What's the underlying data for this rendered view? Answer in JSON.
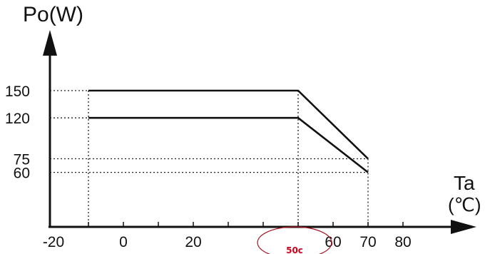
{
  "colors": {
    "line": "#111111",
    "guide": "#222222",
    "annotation": "#d0021b",
    "ellipse": "#a8121f"
  },
  "chart_data": {
    "type": "line",
    "title": "",
    "ylabel": "Po(W)",
    "xlabel_line1": "Ta",
    "xlabel_line2": "(℃)",
    "xlim": [
      -25,
      90
    ],
    "ylim": [
      0,
      190
    ],
    "x_ticks": [
      {
        "value": -20,
        "label": "-20"
      },
      {
        "value": 0,
        "label": "0"
      },
      {
        "value": 20,
        "label": "20"
      },
      {
        "value": 60,
        "label": "60"
      },
      {
        "value": 70,
        "label": "70"
      },
      {
        "value": 80,
        "label": "80"
      }
    ],
    "x_tick_marks": [
      -10,
      0,
      10,
      20,
      30,
      40,
      50,
      60,
      70,
      80
    ],
    "y_ticks": [
      {
        "value": 150,
        "label": "150"
      },
      {
        "value": 120,
        "label": "120"
      },
      {
        "value": 75,
        "label": "75"
      },
      {
        "value": 60,
        "label": "60"
      }
    ],
    "series": [
      {
        "points": [
          [
            -10,
            150
          ],
          [
            50,
            150
          ],
          [
            70,
            75
          ]
        ]
      },
      {
        "points": [
          [
            -10,
            120
          ],
          [
            50,
            120
          ],
          [
            70,
            60
          ]
        ]
      }
    ],
    "annotation": {
      "x": 50,
      "label": "50c"
    },
    "grid": false
  }
}
